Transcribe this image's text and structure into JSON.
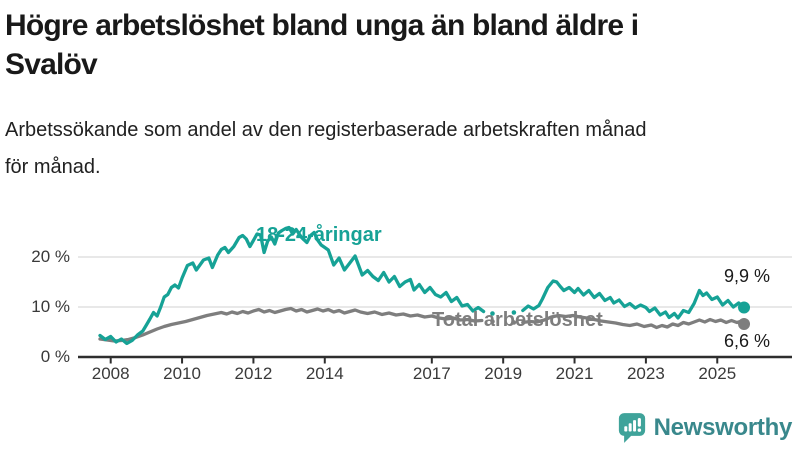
{
  "header": {
    "title": "Högre arbetslöshet bland unga än bland äldre i Svalöv",
    "title_lines": [
      "Högre arbetslöshet bland unga än bland äldre i",
      "Svalöv"
    ],
    "subtitle_lines": [
      "Arbetssökande som andel av den registerbaserade arbetskraften månad",
      "för månad."
    ]
  },
  "chart_data": {
    "type": "line",
    "unit": "%",
    "title": "Högre arbetslöshet bland unga än bland äldre i Svalöv",
    "subtitle": "Arbetssökande som andel av den registerbaserade arbetskraften månad för månad.",
    "xlim": [
      2007.5,
      2026.2
    ],
    "ylim": [
      0,
      27
    ],
    "grid": true,
    "x_ticks": [
      2008,
      2010,
      2012,
      2014,
      2017,
      2019,
      2021,
      2023,
      2025
    ],
    "y_ticks": [
      0,
      10,
      20
    ],
    "y_tick_labels": [
      "0 %",
      "10 %",
      "20 %"
    ],
    "colors": {
      "axis": "#2e2e2e",
      "grid": "#d9d9d9"
    },
    "series": [
      {
        "name": "Total arbetslöshet",
        "color": "#7e7e7e",
        "end_value": 6.6,
        "end_label": "6,6 %",
        "segments": [
          [
            [
              2007.7,
              3.6
            ],
            [
              2007.9,
              3.4
            ],
            [
              2008.1,
              3.2
            ],
            [
              2008.3,
              3.3
            ],
            [
              2008.5,
              3.5
            ],
            [
              2008.7,
              3.9
            ],
            [
              2008.9,
              4.4
            ],
            [
              2009.1,
              5.0
            ],
            [
              2009.3,
              5.6
            ],
            [
              2009.5,
              6.1
            ],
            [
              2009.7,
              6.5
            ],
            [
              2009.9,
              6.8
            ],
            [
              2010.1,
              7.1
            ],
            [
              2010.3,
              7.5
            ],
            [
              2010.5,
              7.9
            ],
            [
              2010.7,
              8.3
            ],
            [
              2010.9,
              8.6
            ],
            [
              2011.1,
              8.9
            ],
            [
              2011.25,
              8.6
            ],
            [
              2011.4,
              9.0
            ],
            [
              2011.55,
              8.7
            ],
            [
              2011.7,
              9.1
            ],
            [
              2011.85,
              8.8
            ],
            [
              2012.0,
              9.2
            ],
            [
              2012.15,
              9.5
            ],
            [
              2012.3,
              9.0
            ],
            [
              2012.45,
              9.3
            ],
            [
              2012.6,
              8.9
            ],
            [
              2012.75,
              9.2
            ],
            [
              2012.9,
              9.5
            ],
            [
              2013.05,
              9.7
            ],
            [
              2013.2,
              9.2
            ],
            [
              2013.35,
              9.5
            ],
            [
              2013.5,
              9.0
            ],
            [
              2013.65,
              9.3
            ],
            [
              2013.8,
              9.6
            ],
            [
              2013.95,
              9.2
            ],
            [
              2014.1,
              9.5
            ],
            [
              2014.25,
              9.0
            ],
            [
              2014.4,
              9.3
            ],
            [
              2014.55,
              8.8
            ],
            [
              2014.7,
              9.1
            ],
            [
              2014.85,
              9.4
            ],
            [
              2015.0,
              9.0
            ],
            [
              2015.2,
              8.7
            ],
            [
              2015.4,
              9.0
            ],
            [
              2015.6,
              8.5
            ],
            [
              2015.8,
              8.8
            ],
            [
              2016.0,
              8.4
            ],
            [
              2016.2,
              8.6
            ],
            [
              2016.4,
              8.2
            ],
            [
              2016.6,
              8.4
            ],
            [
              2016.8,
              8.0
            ],
            [
              2017.0,
              8.2
            ],
            [
              2017.2,
              7.8
            ],
            [
              2017.4,
              7.6
            ],
            [
              2017.6,
              7.8
            ],
            [
              2017.8,
              7.4
            ],
            [
              2018.0,
              7.5
            ],
            [
              2018.2,
              7.2
            ],
            [
              2018.4,
              7.3
            ]
          ],
          [
            [
              2019.55,
              6.9
            ],
            [
              2019.75,
              7.1
            ],
            [
              2019.95,
              7.0
            ],
            [
              2020.15,
              7.4
            ],
            [
              2020.35,
              8.0
            ],
            [
              2020.55,
              8.3
            ],
            [
              2020.75,
              8.1
            ],
            [
              2020.95,
              8.3
            ],
            [
              2021.15,
              8.0
            ],
            [
              2021.35,
              7.8
            ],
            [
              2021.55,
              7.5
            ],
            [
              2021.75,
              7.2
            ],
            [
              2021.95,
              7.0
            ],
            [
              2022.15,
              6.8
            ],
            [
              2022.35,
              6.5
            ],
            [
              2022.55,
              6.3
            ],
            [
              2022.75,
              6.6
            ],
            [
              2022.95,
              6.1
            ],
            [
              2023.15,
              6.4
            ],
            [
              2023.3,
              5.9
            ],
            [
              2023.45,
              6.3
            ],
            [
              2023.6,
              6.0
            ],
            [
              2023.75,
              6.6
            ],
            [
              2023.9,
              6.3
            ],
            [
              2024.05,
              6.9
            ],
            [
              2024.2,
              6.6
            ],
            [
              2024.35,
              7.0
            ],
            [
              2024.5,
              7.4
            ],
            [
              2024.65,
              7.0
            ],
            [
              2024.8,
              7.5
            ],
            [
              2024.95,
              7.1
            ],
            [
              2025.1,
              7.4
            ],
            [
              2025.25,
              6.9
            ],
            [
              2025.4,
              7.3
            ],
            [
              2025.55,
              6.9
            ],
            [
              2025.65,
              7.1
            ],
            [
              2025.75,
              6.6
            ]
          ]
        ],
        "isolated_points": [
          [
            2018.7,
            7.1
          ],
          [
            2019.3,
            6.9
          ]
        ]
      },
      {
        "name": "18-24-åringar",
        "color": "#16a296",
        "end_value": 9.9,
        "end_label": "9,9 %",
        "segments": [
          [
            [
              2007.7,
              4.3
            ],
            [
              2007.85,
              3.5
            ],
            [
              2008.0,
              4.1
            ],
            [
              2008.15,
              3.0
            ],
            [
              2008.3,
              3.6
            ],
            [
              2008.45,
              2.7
            ],
            [
              2008.6,
              3.3
            ],
            [
              2008.75,
              4.4
            ],
            [
              2008.9,
              5.2
            ],
            [
              2009.0,
              6.4
            ],
            [
              2009.1,
              7.6
            ],
            [
              2009.2,
              8.9
            ],
            [
              2009.3,
              8.2
            ],
            [
              2009.4,
              10.0
            ],
            [
              2009.5,
              12.0
            ],
            [
              2009.6,
              12.5
            ],
            [
              2009.7,
              13.9
            ],
            [
              2009.8,
              14.4
            ],
            [
              2009.9,
              13.8
            ],
            [
              2010.0,
              15.8
            ],
            [
              2010.15,
              18.3
            ],
            [
              2010.3,
              18.8
            ],
            [
              2010.4,
              17.4
            ],
            [
              2010.5,
              18.4
            ],
            [
              2010.6,
              19.4
            ],
            [
              2010.75,
              19.8
            ],
            [
              2010.85,
              17.9
            ],
            [
              2011.0,
              20.4
            ],
            [
              2011.1,
              21.5
            ],
            [
              2011.2,
              21.9
            ],
            [
              2011.3,
              20.9
            ],
            [
              2011.45,
              22.1
            ],
            [
              2011.6,
              23.9
            ],
            [
              2011.7,
              24.3
            ],
            [
              2011.8,
              23.6
            ],
            [
              2011.9,
              22.1
            ],
            [
              2012.0,
              23.3
            ],
            [
              2012.1,
              24.6
            ],
            [
              2012.2,
              24.4
            ],
            [
              2012.3,
              20.9
            ],
            [
              2012.4,
              23.2
            ],
            [
              2012.5,
              24.0
            ],
            [
              2012.6,
              22.6
            ],
            [
              2012.7,
              24.8
            ],
            [
              2012.8,
              25.3
            ],
            [
              2012.9,
              25.7
            ],
            [
              2013.0,
              25.9
            ],
            [
              2013.1,
              24.6
            ],
            [
              2013.2,
              25.5
            ],
            [
              2013.35,
              23.9
            ],
            [
              2013.5,
              22.9
            ],
            [
              2013.6,
              24.3
            ],
            [
              2013.7,
              24.9
            ],
            [
              2013.8,
              23.4
            ],
            [
              2013.9,
              22.4
            ],
            [
              2014.0,
              21.9
            ],
            [
              2014.1,
              21.4
            ],
            [
              2014.25,
              18.4
            ],
            [
              2014.4,
              19.8
            ],
            [
              2014.55,
              17.4
            ],
            [
              2014.7,
              18.8
            ],
            [
              2014.85,
              20.2
            ],
            [
              2015.05,
              16.4
            ],
            [
              2015.2,
              17.3
            ],
            [
              2015.35,
              16.1
            ],
            [
              2015.5,
              15.3
            ],
            [
              2015.65,
              16.9
            ],
            [
              2015.8,
              15.0
            ],
            [
              2015.95,
              16.1
            ],
            [
              2016.1,
              14.1
            ],
            [
              2016.25,
              15.0
            ],
            [
              2016.4,
              15.5
            ],
            [
              2016.5,
              13.4
            ],
            [
              2016.65,
              14.5
            ],
            [
              2016.8,
              12.9
            ],
            [
              2016.95,
              13.9
            ],
            [
              2017.1,
              12.5
            ],
            [
              2017.25,
              12.0
            ],
            [
              2017.4,
              12.9
            ],
            [
              2017.55,
              11.1
            ],
            [
              2017.7,
              11.9
            ],
            [
              2017.85,
              10.2
            ],
            [
              2018.0,
              10.5
            ],
            [
              2018.15,
              9.2
            ],
            [
              2018.3,
              9.9
            ],
            [
              2018.45,
              9.1
            ]
          ],
          [
            [
              2019.55,
              9.3
            ],
            [
              2019.7,
              10.2
            ],
            [
              2019.85,
              9.6
            ],
            [
              2020.0,
              10.3
            ],
            [
              2020.1,
              11.6
            ],
            [
              2020.25,
              13.9
            ],
            [
              2020.4,
              15.2
            ],
            [
              2020.5,
              15.0
            ],
            [
              2020.6,
              14.1
            ],
            [
              2020.7,
              13.3
            ],
            [
              2020.85,
              13.9
            ],
            [
              2021.0,
              12.9
            ],
            [
              2021.1,
              13.7
            ],
            [
              2021.25,
              12.4
            ],
            [
              2021.4,
              13.3
            ],
            [
              2021.55,
              11.9
            ],
            [
              2021.7,
              12.7
            ],
            [
              2021.85,
              11.3
            ],
            [
              2022.0,
              11.9
            ],
            [
              2022.1,
              10.8
            ],
            [
              2022.25,
              11.4
            ],
            [
              2022.4,
              10.1
            ],
            [
              2022.55,
              10.7
            ],
            [
              2022.7,
              9.8
            ],
            [
              2022.85,
              10.4
            ],
            [
              2023.0,
              9.9
            ],
            [
              2023.1,
              9.1
            ],
            [
              2023.25,
              9.8
            ],
            [
              2023.4,
              8.4
            ],
            [
              2023.55,
              9.0
            ],
            [
              2023.65,
              7.9
            ],
            [
              2023.8,
              8.7
            ],
            [
              2023.9,
              7.8
            ],
            [
              2024.05,
              9.3
            ],
            [
              2024.2,
              8.9
            ],
            [
              2024.35,
              10.7
            ],
            [
              2024.5,
              13.3
            ],
            [
              2024.6,
              12.3
            ],
            [
              2024.7,
              12.8
            ],
            [
              2024.85,
              11.5
            ],
            [
              2025.0,
              12.0
            ],
            [
              2025.15,
              10.4
            ],
            [
              2025.3,
              11.3
            ],
            [
              2025.45,
              10.0
            ],
            [
              2025.6,
              10.8
            ],
            [
              2025.75,
              9.9
            ]
          ]
        ],
        "isolated_points": [
          [
            2018.7,
            8.7
          ],
          [
            2019.3,
            8.9
          ]
        ]
      }
    ]
  },
  "footer": {
    "brand": "Newsworthy"
  }
}
